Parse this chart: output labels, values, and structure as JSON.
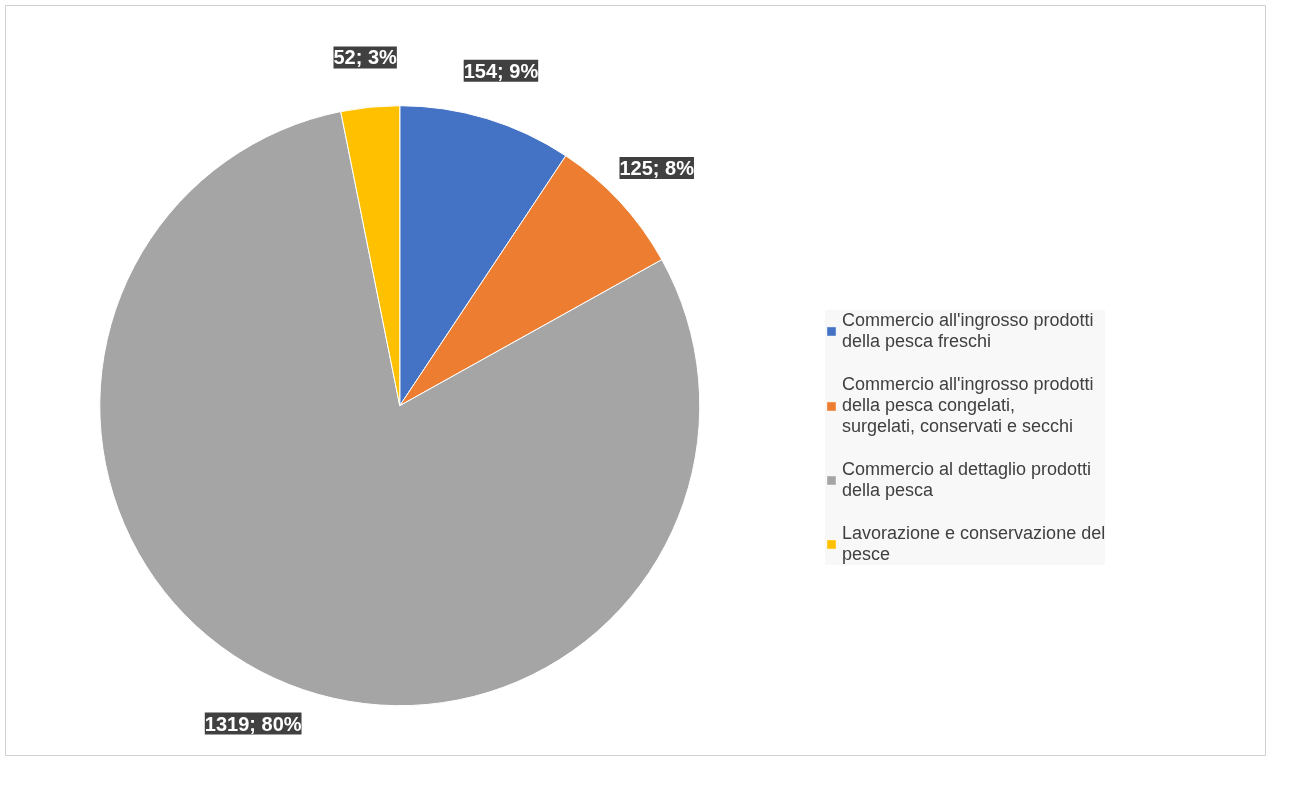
{
  "chart_data": {
    "type": "pie",
    "categories": [
      "Commercio all'ingrosso prodotti della pesca freschi",
      "Commercio all'ingrosso prodotti della pesca congelati, surgelati, conservati e secchi",
      "Commercio al dettaglio prodotti della pesca",
      "Lavorazione e conservazione del pesce"
    ],
    "values": [
      154,
      125,
      1319,
      52
    ],
    "colors": [
      "#4472c4",
      "#ed7d31",
      "#a5a5a5",
      "#ffc000"
    ],
    "value_labels": [
      "154; 9%",
      "125; 8%",
      "1319; 80%",
      "52; 3%"
    ],
    "legend": "right"
  }
}
